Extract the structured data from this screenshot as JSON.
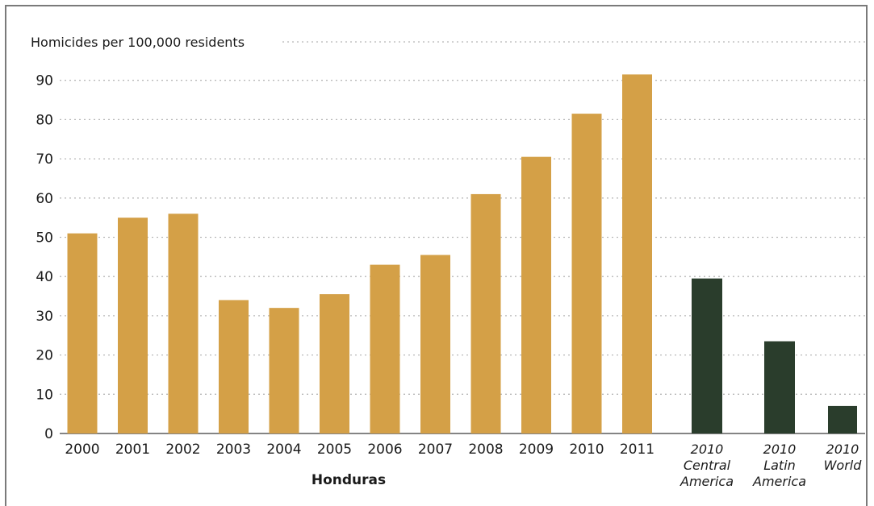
{
  "chart_data": {
    "type": "bar",
    "ylabel": "Homicides per 100,000 residents",
    "ylim": [
      0,
      100
    ],
    "yticks": [
      0,
      10,
      20,
      30,
      40,
      50,
      60,
      70,
      80,
      90
    ],
    "grid": true,
    "group_label": "Honduras",
    "colors": {
      "honduras": "#d4a047",
      "comparison": "#2a3d2c"
    },
    "categories": [
      {
        "id": "2000",
        "lines": [
          "2000"
        ],
        "group": "honduras",
        "value": 51
      },
      {
        "id": "2001",
        "lines": [
          "2001"
        ],
        "group": "honduras",
        "value": 55
      },
      {
        "id": "2002",
        "lines": [
          "2002"
        ],
        "group": "honduras",
        "value": 56
      },
      {
        "id": "2003",
        "lines": [
          "2003"
        ],
        "group": "honduras",
        "value": 34
      },
      {
        "id": "2004",
        "lines": [
          "2004"
        ],
        "group": "honduras",
        "value": 32
      },
      {
        "id": "2005",
        "lines": [
          "2005"
        ],
        "group": "honduras",
        "value": 35.5
      },
      {
        "id": "2006",
        "lines": [
          "2006"
        ],
        "group": "honduras",
        "value": 43
      },
      {
        "id": "2007",
        "lines": [
          "2007"
        ],
        "group": "honduras",
        "value": 45.5
      },
      {
        "id": "2008",
        "lines": [
          "2008"
        ],
        "group": "honduras",
        "value": 61
      },
      {
        "id": "2009",
        "lines": [
          "2009"
        ],
        "group": "honduras",
        "value": 70.5
      },
      {
        "id": "2010",
        "lines": [
          "2010"
        ],
        "group": "honduras",
        "value": 81.5
      },
      {
        "id": "2011",
        "lines": [
          "2011"
        ],
        "group": "honduras",
        "value": 91.5
      },
      {
        "id": "2010-central-america",
        "lines": [
          "2010",
          "Central",
          "America"
        ],
        "group": "comparison",
        "value": 39.5
      },
      {
        "id": "2010-latin-america",
        "lines": [
          "2010",
          "Latin",
          "America"
        ],
        "group": "comparison",
        "value": 23.5
      },
      {
        "id": "2010-world",
        "lines": [
          "2010",
          "World"
        ],
        "group": "comparison",
        "value": 7
      }
    ]
  }
}
